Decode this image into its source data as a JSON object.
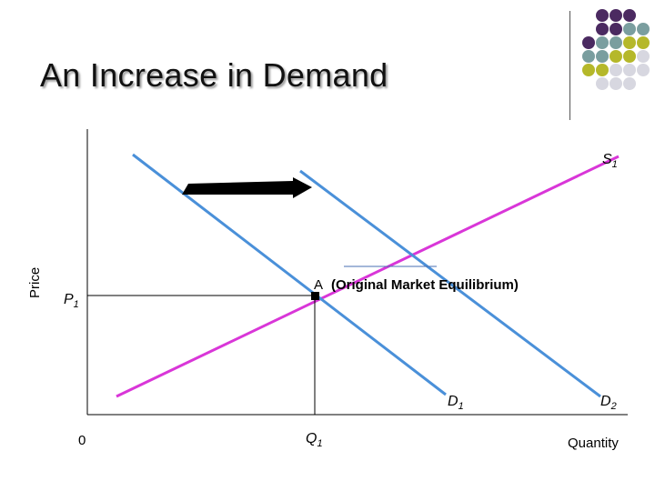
{
  "slide": {
    "title": "An Increase in Demand",
    "decor_colors": [
      "#4b2a61",
      "#7a9e9f",
      "#b5b82a",
      "#d7d7e0"
    ]
  },
  "diagram": {
    "y_axis_label": "Price",
    "x_axis_label": "Quantity",
    "origin_label": "0",
    "supply_label": "S",
    "supply_sub": "1",
    "demand1_label": "D",
    "demand1_sub": "1",
    "demand2_label": "D",
    "demand2_sub": "2",
    "price_label": "P",
    "price_sub": "1",
    "quantity_label": "Q",
    "quantity_sub": "1",
    "point_label": "A",
    "point_note": "(Original Market Equilibrium)",
    "colors": {
      "supply": "#d936d8",
      "demand": "#4a90d9",
      "axes": "#000000"
    }
  }
}
